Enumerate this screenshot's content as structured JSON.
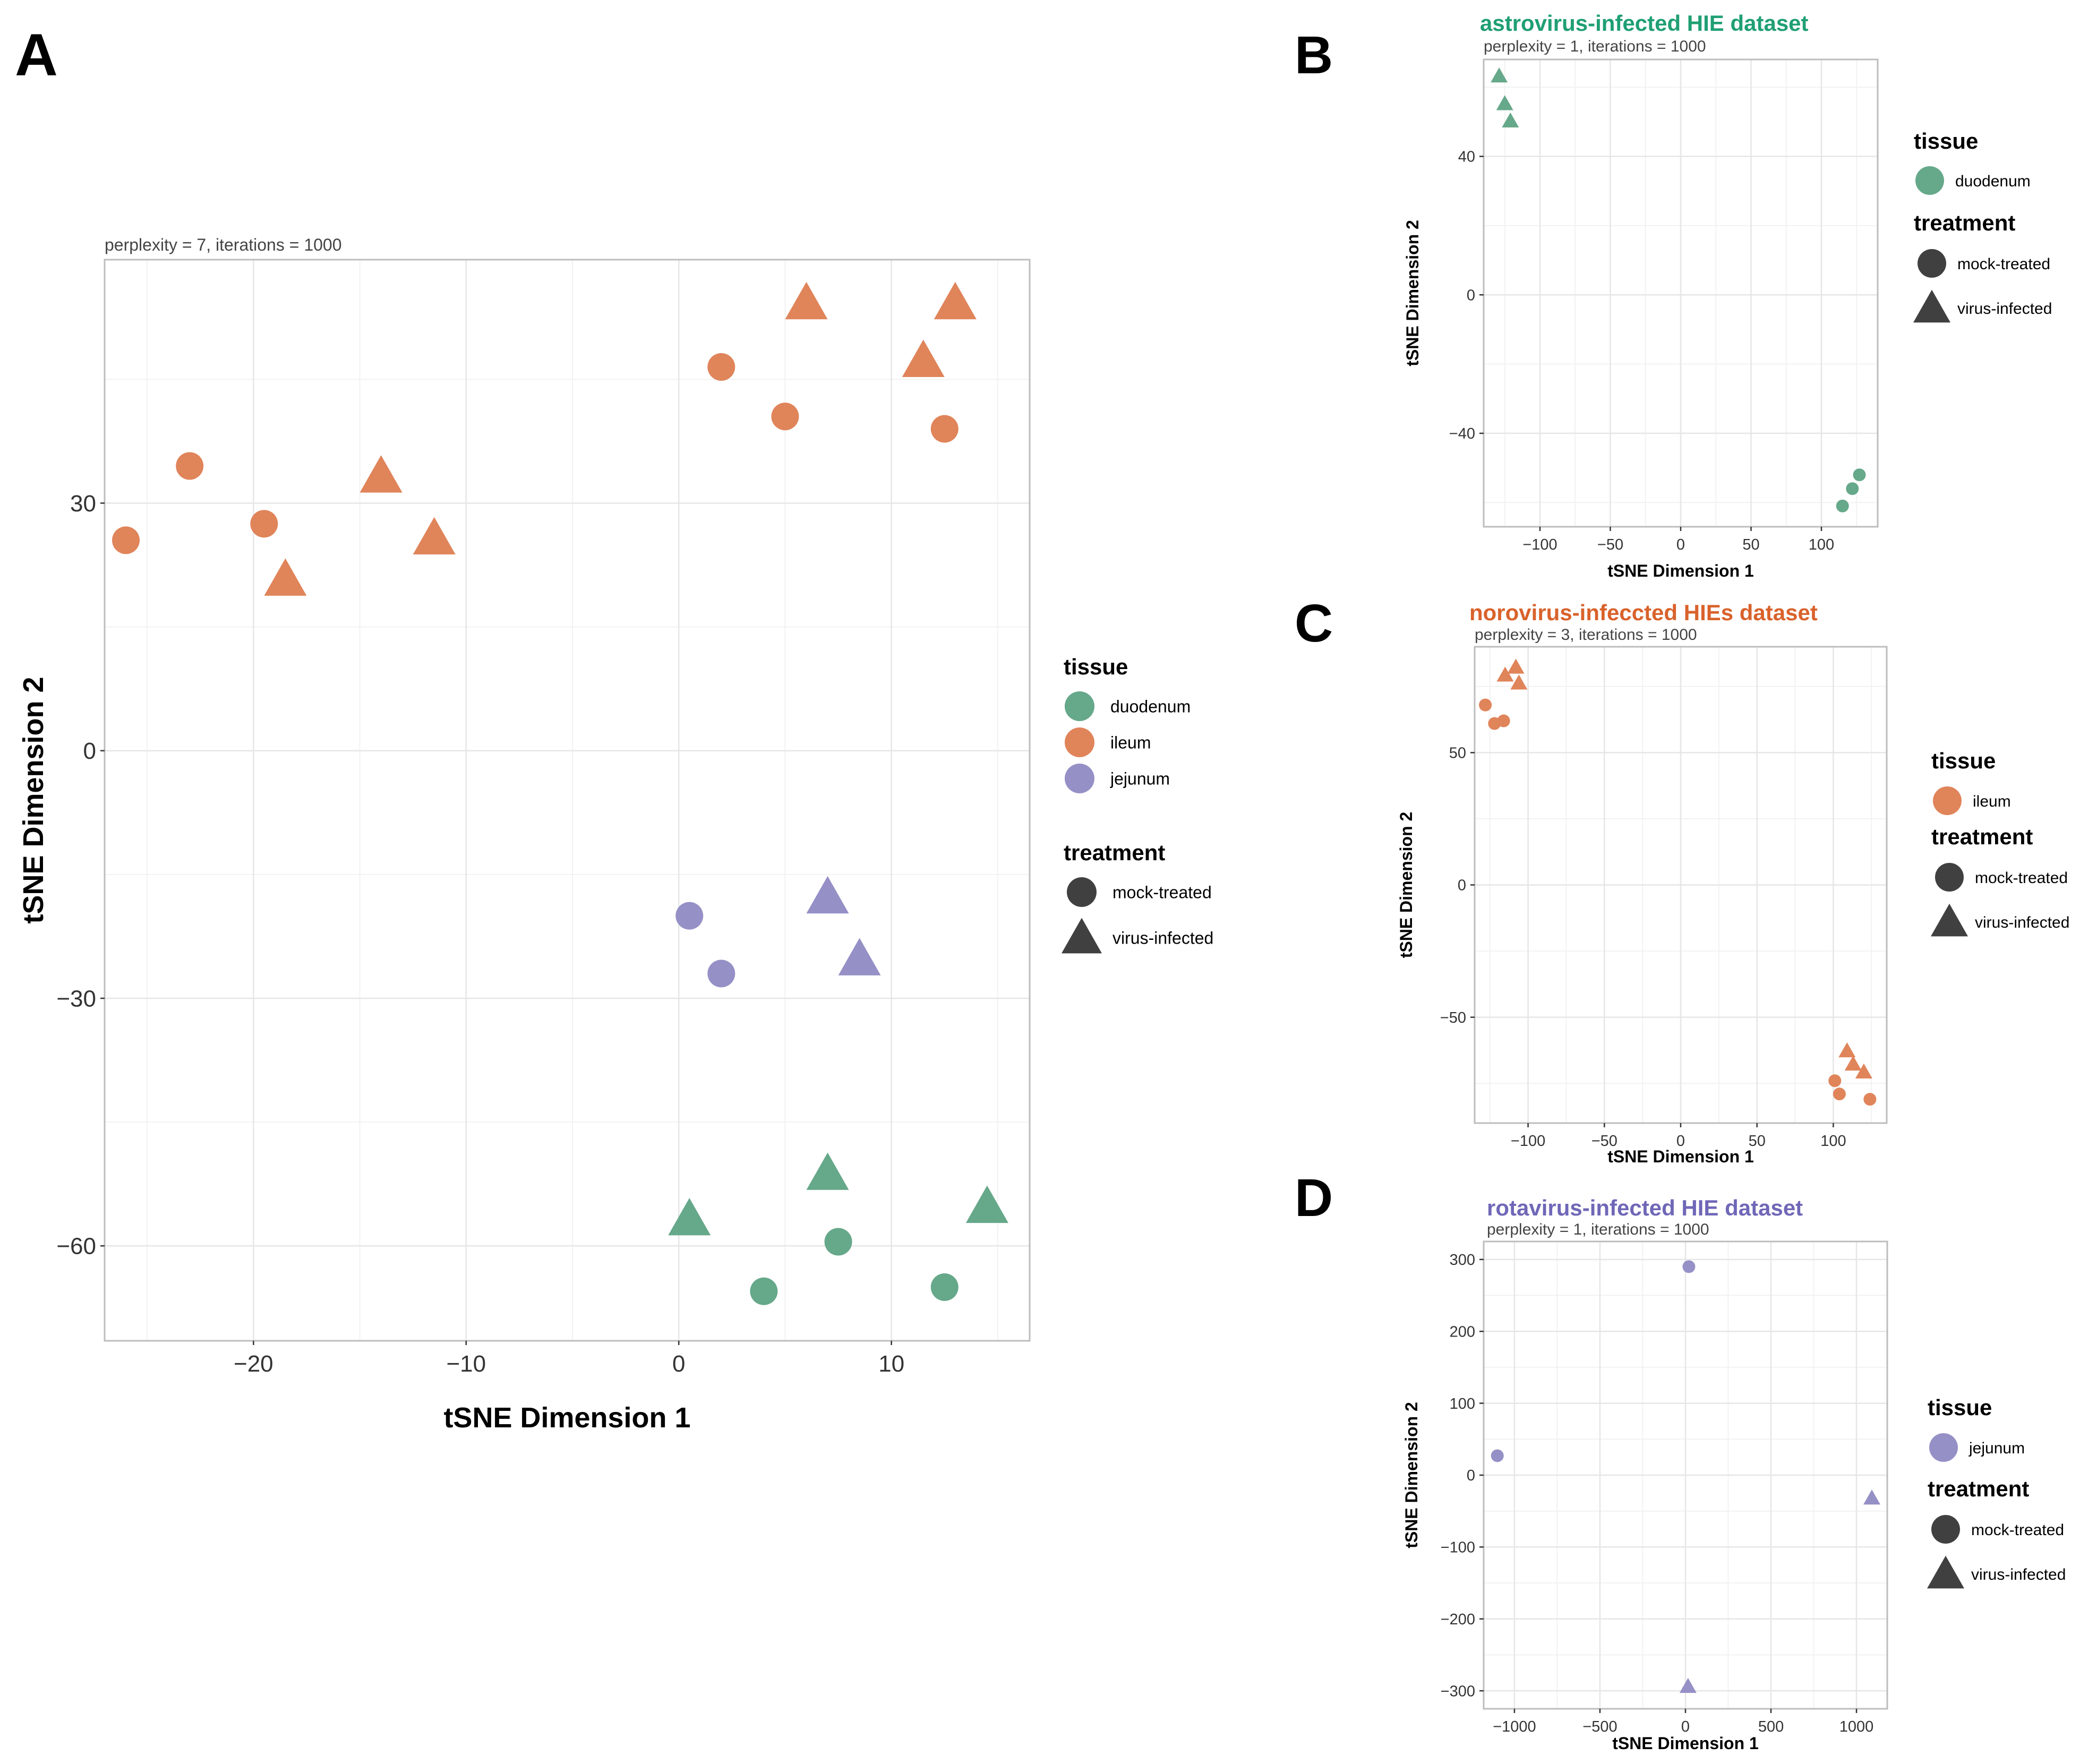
{
  "colors": {
    "duodenum": "#66a88a",
    "ileum": "#e0845a",
    "jejunum": "#9590c6",
    "neutral": "#404040"
  },
  "chart_data": [
    {
      "panel_label": "A",
      "type": "scatter",
      "title": "",
      "subtitle": "perplexity = 7, iterations = 1000",
      "xlabel": "tSNE Dimension 1",
      "ylabel": "tSNE Dimension 2",
      "xlim": [
        -27,
        16.5
      ],
      "ylim": [
        -71.5,
        59.5
      ],
      "xticks": [
        -20,
        -10,
        0,
        10
      ],
      "xtick_labels": [
        "−20",
        "−10",
        "0",
        "10"
      ],
      "yticks": [
        -60,
        -30,
        0,
        30
      ],
      "ytick_labels": [
        "−60",
        "−30",
        "0",
        "30"
      ],
      "grid": true,
      "legend": {
        "position": "right",
        "tissue_title": "tissue",
        "tissue": [
          "duodenum",
          "ileum",
          "jejunum"
        ],
        "treatment_title": "treatment",
        "treatment": [
          "mock-treated",
          "virus-infected"
        ]
      },
      "points": [
        {
          "x": -26.0,
          "y": 25.5,
          "tissue": "ileum",
          "treatment": "mock-treated"
        },
        {
          "x": -23.0,
          "y": 34.5,
          "tissue": "ileum",
          "treatment": "mock-treated"
        },
        {
          "x": -19.5,
          "y": 27.5,
          "tissue": "ileum",
          "treatment": "mock-treated"
        },
        {
          "x": -18.5,
          "y": 20.5,
          "tissue": "ileum",
          "treatment": "virus-infected"
        },
        {
          "x": -14.0,
          "y": 33.0,
          "tissue": "ileum",
          "treatment": "virus-infected"
        },
        {
          "x": -11.5,
          "y": 25.5,
          "tissue": "ileum",
          "treatment": "virus-infected"
        },
        {
          "x": 2.0,
          "y": 46.5,
          "tissue": "ileum",
          "treatment": "mock-treated"
        },
        {
          "x": 5.0,
          "y": 40.5,
          "tissue": "ileum",
          "treatment": "mock-treated"
        },
        {
          "x": 6.0,
          "y": 54.0,
          "tissue": "ileum",
          "treatment": "virus-infected"
        },
        {
          "x": 11.5,
          "y": 47.0,
          "tissue": "ileum",
          "treatment": "virus-infected"
        },
        {
          "x": 12.5,
          "y": 39.0,
          "tissue": "ileum",
          "treatment": "mock-treated"
        },
        {
          "x": 13.0,
          "y": 54.0,
          "tissue": "ileum",
          "treatment": "virus-infected"
        },
        {
          "x": 0.5,
          "y": -20.0,
          "tissue": "jejunum",
          "treatment": "mock-treated"
        },
        {
          "x": 2.0,
          "y": -27.0,
          "tissue": "jejunum",
          "treatment": "mock-treated"
        },
        {
          "x": 7.0,
          "y": -18.0,
          "tissue": "jejunum",
          "treatment": "virus-infected"
        },
        {
          "x": 8.5,
          "y": -25.5,
          "tissue": "jejunum",
          "treatment": "virus-infected"
        },
        {
          "x": 0.5,
          "y": -57.0,
          "tissue": "duodenum",
          "treatment": "virus-infected"
        },
        {
          "x": 7.0,
          "y": -51.5,
          "tissue": "duodenum",
          "treatment": "virus-infected"
        },
        {
          "x": 14.5,
          "y": -55.5,
          "tissue": "duodenum",
          "treatment": "virus-infected"
        },
        {
          "x": 4.0,
          "y": -65.5,
          "tissue": "duodenum",
          "treatment": "mock-treated"
        },
        {
          "x": 7.5,
          "y": -59.5,
          "tissue": "duodenum",
          "treatment": "mock-treated"
        },
        {
          "x": 12.5,
          "y": -65.0,
          "tissue": "duodenum",
          "treatment": "mock-treated"
        }
      ]
    },
    {
      "panel_label": "B",
      "type": "scatter",
      "title": "astrovirus-infected HIE dataset",
      "title_color": "#1f9f73",
      "subtitle": "perplexity = 1, iterations = 1000",
      "xlabel": "tSNE Dimension 1",
      "ylabel": "tSNE Dimension 2",
      "xlim": [
        -140,
        140
      ],
      "ylim": [
        -67,
        68
      ],
      "xticks": [
        -100,
        -50,
        0,
        50,
        100
      ],
      "xtick_labels": [
        "−100",
        "−50",
        "0",
        "50",
        "100"
      ],
      "yticks": [
        -40,
        0,
        40
      ],
      "ytick_labels": [
        "−40",
        "0",
        "40"
      ],
      "grid": true,
      "legend": {
        "position": "right",
        "tissue_title": "tissue",
        "tissue": [
          "duodenum"
        ],
        "treatment_title": "treatment",
        "treatment": [
          "mock-treated",
          "virus-infected"
        ]
      },
      "points": [
        {
          "x": -129,
          "y": 63,
          "tissue": "duodenum",
          "treatment": "virus-infected"
        },
        {
          "x": -125,
          "y": 55,
          "tissue": "duodenum",
          "treatment": "virus-infected"
        },
        {
          "x": -121,
          "y": 50,
          "tissue": "duodenum",
          "treatment": "virus-infected"
        },
        {
          "x": 115,
          "y": -61,
          "tissue": "duodenum",
          "treatment": "mock-treated"
        },
        {
          "x": 122,
          "y": -56,
          "tissue": "duodenum",
          "treatment": "mock-treated"
        },
        {
          "x": 127,
          "y": -52,
          "tissue": "duodenum",
          "treatment": "mock-treated"
        }
      ]
    },
    {
      "panel_label": "C",
      "type": "scatter",
      "title": "norovirus-infeccted HIEs dataset",
      "title_color": "#d9622b",
      "subtitle": "perplexity = 3, iterations = 1000",
      "xlabel": "tSNE Dimension 1",
      "ylabel": "tSNE Dimension 2",
      "xlim": [
        -135,
        135
      ],
      "ylim": [
        -90,
        90
      ],
      "xticks": [
        -100,
        -50,
        0,
        50,
        100
      ],
      "xtick_labels": [
        "−100",
        "−50",
        "0",
        "50",
        "100"
      ],
      "yticks": [
        -50,
        0,
        50
      ],
      "ytick_labels": [
        "−50",
        "0",
        "50"
      ],
      "grid": true,
      "legend": {
        "position": "right",
        "tissue_title": "tissue",
        "tissue": [
          "ileum"
        ],
        "treatment_title": "treatment",
        "treatment": [
          "mock-treated",
          "virus-infected"
        ]
      },
      "points": [
        {
          "x": -128,
          "y": 68,
          "tissue": "ileum",
          "treatment": "mock-treated"
        },
        {
          "x": -122,
          "y": 61,
          "tissue": "ileum",
          "treatment": "mock-treated"
        },
        {
          "x": -116,
          "y": 62,
          "tissue": "ileum",
          "treatment": "mock-treated"
        },
        {
          "x": -115,
          "y": 79,
          "tissue": "ileum",
          "treatment": "virus-infected"
        },
        {
          "x": -108,
          "y": 82,
          "tissue": "ileum",
          "treatment": "virus-infected"
        },
        {
          "x": -106,
          "y": 76,
          "tissue": "ileum",
          "treatment": "virus-infected"
        },
        {
          "x": 101,
          "y": -74,
          "tissue": "ileum",
          "treatment": "mock-treated"
        },
        {
          "x": 104,
          "y": -79,
          "tissue": "ileum",
          "treatment": "mock-treated"
        },
        {
          "x": 109,
          "y": -63,
          "tissue": "ileum",
          "treatment": "virus-infected"
        },
        {
          "x": 113,
          "y": -68,
          "tissue": "ileum",
          "treatment": "virus-infected"
        },
        {
          "x": 120,
          "y": -71,
          "tissue": "ileum",
          "treatment": "virus-infected"
        },
        {
          "x": 124,
          "y": -81,
          "tissue": "ileum",
          "treatment": "mock-treated"
        }
      ]
    },
    {
      "panel_label": "D",
      "type": "scatter",
      "title": "rotavirus-infected HIE dataset",
      "title_color": "#6f67b7",
      "subtitle": "perplexity = 1, iterations = 1000",
      "xlabel": "tSNE Dimension 1",
      "ylabel": "tSNE Dimension 2",
      "xlim": [
        -1180,
        1180
      ],
      "ylim": [
        -325,
        325
      ],
      "xticks": [
        -1000,
        -500,
        0,
        500,
        1000
      ],
      "xtick_labels": [
        "−1000",
        "−500",
        "0",
        "500",
        "1000"
      ],
      "yticks": [
        -300,
        -200,
        -100,
        0,
        100,
        200,
        300
      ],
      "ytick_labels": [
        "−300",
        "−200",
        "−100",
        "0",
        "100",
        "200",
        "300"
      ],
      "grid": true,
      "legend": {
        "position": "right",
        "tissue_title": "tissue",
        "tissue": [
          "jejunum"
        ],
        "treatment_title": "treatment",
        "treatment": [
          "mock-treated",
          "virus-infected"
        ]
      },
      "points": [
        {
          "x": 20,
          "y": 290,
          "tissue": "jejunum",
          "treatment": "mock-treated"
        },
        {
          "x": -1100,
          "y": 27,
          "tissue": "jejunum",
          "treatment": "mock-treated"
        },
        {
          "x": 1090,
          "y": -33,
          "tissue": "jejunum",
          "treatment": "virus-infected"
        },
        {
          "x": 15,
          "y": -295,
          "tissue": "jejunum",
          "treatment": "virus-infected"
        }
      ]
    }
  ]
}
